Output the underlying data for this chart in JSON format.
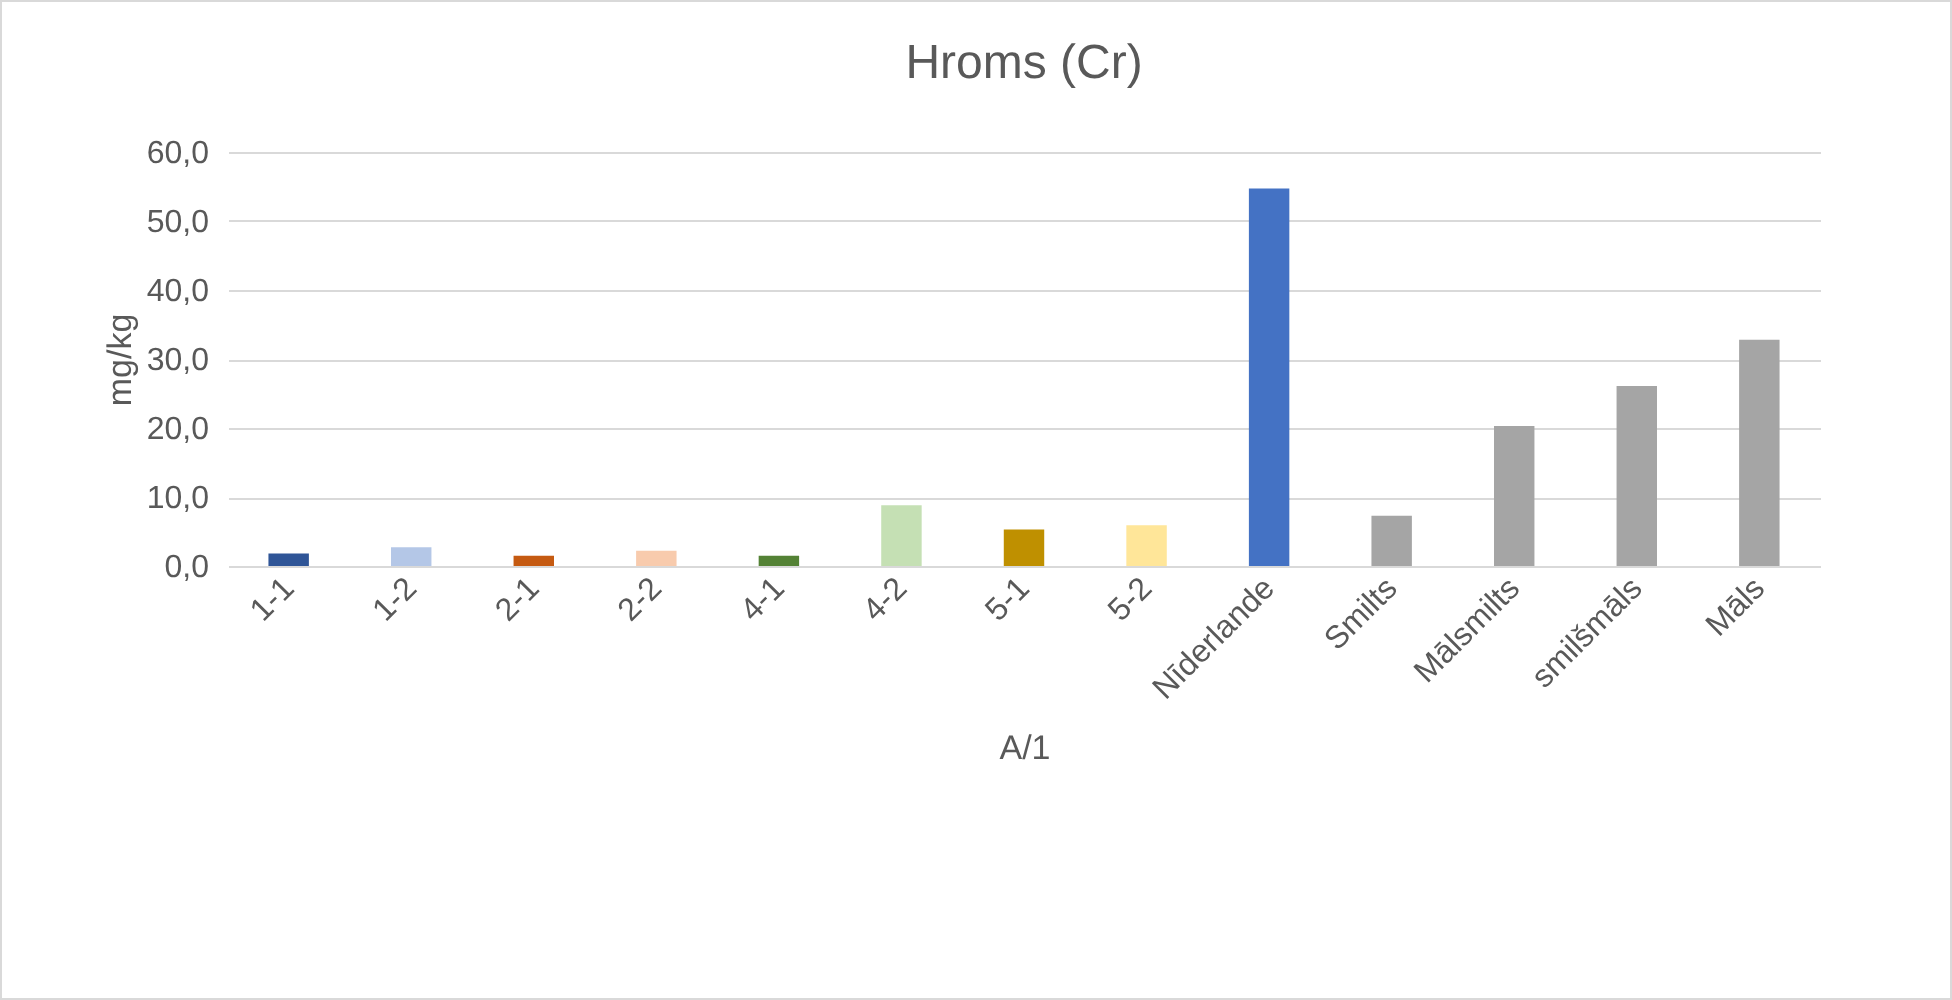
{
  "chart_data": {
    "type": "bar",
    "title": "Hroms (Cr)",
    "xlabel": "A/1",
    "ylabel": "mg/kg",
    "categories": [
      "1-1",
      "1-2",
      "2-1",
      "2-2",
      "4-1",
      "4-2",
      "5-1",
      "5-2",
      "Nīderlande",
      "Smilts",
      "Mālsmilts",
      "smilšmāls",
      "Māls"
    ],
    "values": [
      1.8,
      2.7,
      1.5,
      2.2,
      1.5,
      8.8,
      5.3,
      5.9,
      54.7,
      7.3,
      20.3,
      26.1,
      32.8
    ],
    "colors": [
      "#2f5597",
      "#b4c7e7",
      "#c55a11",
      "#f8cbad",
      "#548235",
      "#c5e0b4",
      "#bf9000",
      "#ffe699",
      "#4472c4",
      "#a5a5a5",
      "#a5a5a5",
      "#a5a5a5",
      "#a5a5a5"
    ],
    "ylim": [
      0,
      60
    ],
    "yticks": [
      {
        "value": 0,
        "label": "0,0"
      },
      {
        "value": 10,
        "label": "10,0"
      },
      {
        "value": 20,
        "label": "20,0"
      },
      {
        "value": 30,
        "label": "30,0"
      },
      {
        "value": 40,
        "label": "40,0"
      },
      {
        "value": 50,
        "label": "50,0"
      },
      {
        "value": 60,
        "label": "60,0"
      }
    ],
    "grid": "y",
    "legend": false
  }
}
